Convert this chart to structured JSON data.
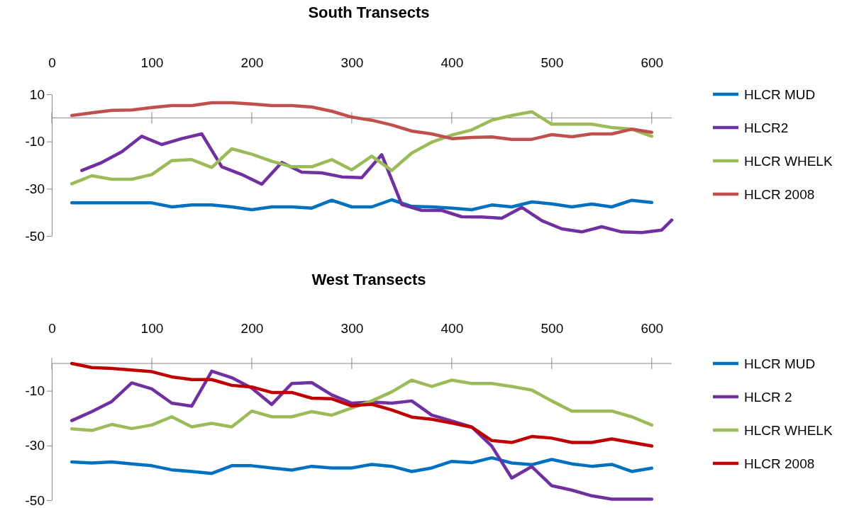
{
  "chart_data": [
    {
      "type": "line",
      "title": "South Transects",
      "xlim": [
        0,
        620
      ],
      "xticks": [
        0,
        100,
        200,
        300,
        400,
        500,
        600
      ],
      "ylim": [
        -50,
        10
      ],
      "yticks": [
        10,
        -10,
        -30,
        -50
      ],
      "grid": false,
      "legend": "right",
      "marker": "none",
      "line_style": "solid",
      "x": [
        20,
        40,
        60,
        80,
        100,
        120,
        140,
        160,
        180,
        200,
        220,
        240,
        260,
        280,
        300,
        320,
        340,
        360,
        380,
        400,
        420,
        440,
        460,
        480,
        500,
        520,
        540,
        560,
        580,
        600
      ],
      "series": [
        {
          "name": "HLCR MUD",
          "color": "#0070c0",
          "values": [
            -36,
            -36,
            -36,
            -36,
            -36,
            -37.7,
            -36.9,
            -36.9,
            -37.7,
            -38.9,
            -37.7,
            -37.7,
            -38.2,
            -34.9,
            -37.7,
            -37.7,
            -34.7,
            -37.5,
            -37.7,
            -38.2,
            -38.9,
            -36.9,
            -37.7,
            -35.6,
            -36.4,
            -37.7,
            -36.5,
            -37.7,
            -34.9,
            -35.8
          ]
        },
        {
          "name": "HLCR2",
          "color": "#7030a0",
          "x": [
            30,
            50,
            70,
            90,
            110,
            130,
            150,
            170,
            190,
            210,
            230,
            250,
            270,
            290,
            310,
            330,
            350,
            370,
            390,
            410,
            430,
            450,
            470,
            490,
            510,
            530,
            550,
            570,
            590,
            610,
            620
          ],
          "values": [
            -22.3,
            -18.9,
            -14.4,
            -7.8,
            -11.3,
            -8.8,
            -6.8,
            -20.7,
            -24,
            -28.1,
            -18.9,
            -23,
            -23.3,
            -25,
            -25.3,
            -15.6,
            -36.7,
            -39.2,
            -39.2,
            -41.9,
            -42,
            -42.5,
            -37.9,
            -43.5,
            -47,
            -48.3,
            -46.1,
            -48.3,
            -48.6,
            -47.5,
            -43.3
          ]
        },
        {
          "name": "HLCR WHELK",
          "color": "#9bbb59",
          "values": [
            -27.9,
            -24.5,
            -26,
            -26,
            -24,
            -18.1,
            -17.7,
            -21,
            -13.1,
            -15.4,
            -18.4,
            -20.7,
            -20.7,
            -17.7,
            -22,
            -16.2,
            -22.3,
            -14.9,
            -10.3,
            -7.3,
            -5.1,
            -1,
            1,
            2.6,
            -2.7,
            -2.7,
            -2.7,
            -4.1,
            -4.8,
            -7.8
          ]
        },
        {
          "name": "HLCR 2008",
          "color": "#c0504d",
          "values": [
            1,
            2.1,
            3.2,
            3.3,
            4.4,
            5.2,
            5.2,
            6.4,
            6.4,
            5.9,
            5.2,
            5.2,
            4.6,
            2.8,
            0.3,
            -1,
            -3,
            -5.6,
            -6.8,
            -8.8,
            -8.3,
            -8.1,
            -9.1,
            -9.1,
            -7.1,
            -8,
            -6.8,
            -6.8,
            -4.8,
            -6.1
          ]
        }
      ]
    },
    {
      "type": "line",
      "title": "West Transects",
      "xlim": [
        0,
        620
      ],
      "xticks": [
        0,
        100,
        200,
        300,
        400,
        500,
        600
      ],
      "ylim": [
        -50,
        0
      ],
      "yticks": [
        -10,
        -30,
        -50
      ],
      "grid": false,
      "legend": "right",
      "marker": "none",
      "line_style": "solid",
      "x": [
        20,
        40,
        60,
        80,
        100,
        120,
        140,
        160,
        180,
        200,
        220,
        240,
        260,
        280,
        300,
        320,
        340,
        360,
        380,
        400,
        420,
        440,
        460,
        480,
        500,
        520,
        540,
        560,
        580,
        600
      ],
      "series": [
        {
          "name": "HLCR MUD",
          "color": "#0070c0",
          "values": [
            -36,
            -36.4,
            -36,
            -36.7,
            -37.4,
            -38.9,
            -39.5,
            -40.2,
            -37.4,
            -37.4,
            -38.2,
            -39,
            -37.6,
            -38.2,
            -38.2,
            -36.9,
            -37.6,
            -39.5,
            -38.2,
            -35.8,
            -36.3,
            -34.5,
            -36.4,
            -37,
            -35.1,
            -36.7,
            -37.6,
            -36.9,
            -39.5,
            -38.3
          ]
        },
        {
          "name": "HLCR 2",
          "color": "#7030a0",
          "values": [
            -20.9,
            -17.6,
            -13.9,
            -7.1,
            -9.3,
            -14.5,
            -15.6,
            -2.8,
            -5.2,
            -9,
            -15,
            -7.3,
            -7,
            -11.5,
            -14.5,
            -14.1,
            -14.5,
            -13.7,
            -18.9,
            -21,
            -23.2,
            -30.2,
            -41.9,
            -37.7,
            -44.7,
            -46.3,
            -48.4,
            -49.6,
            -49.6,
            -49.6
          ]
        },
        {
          "name": "HLCR WHELK",
          "color": "#9bbb59",
          "values": [
            -23.9,
            -24.5,
            -22.3,
            -23.8,
            -22.5,
            -19.5,
            -23.2,
            -21.9,
            -23.2,
            -17.4,
            -19.5,
            -19.5,
            -17.6,
            -18.9,
            -16.3,
            -13.7,
            -10.4,
            -6.1,
            -8.4,
            -6.1,
            -7.3,
            -7.3,
            -8.4,
            -9.7,
            -13.7,
            -17.4,
            -17.4,
            -17.4,
            -19.5,
            -22.5
          ]
        },
        {
          "name": "HLCR 2008",
          "color": "#c00000",
          "values": [
            0,
            -1.5,
            -1.8,
            -2.4,
            -3,
            -4.9,
            -5.9,
            -5.9,
            -8,
            -8.6,
            -10.6,
            -10.6,
            -12.7,
            -12.9,
            -15.5,
            -14.9,
            -17,
            -19.6,
            -20.4,
            -21.8,
            -23.3,
            -28.2,
            -28.9,
            -26.7,
            -27.3,
            -28.9,
            -28.9,
            -27.6,
            -28.9,
            -30.2
          ]
        }
      ]
    }
  ]
}
